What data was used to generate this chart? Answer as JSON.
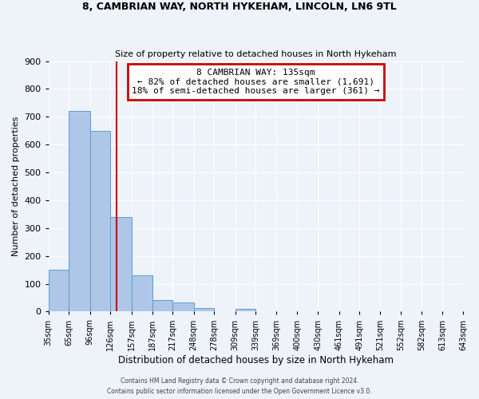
{
  "title1": "8, CAMBRIAN WAY, NORTH HYKEHAM, LINCOLN, LN6 9TL",
  "title2": "Size of property relative to detached houses in North Hykeham",
  "xlabel": "Distribution of detached houses by size in North Hykeham",
  "ylabel": "Number of detached properties",
  "bin_labels": [
    "35sqm",
    "65sqm",
    "96sqm",
    "126sqm",
    "157sqm",
    "187sqm",
    "217sqm",
    "248sqm",
    "278sqm",
    "309sqm",
    "339sqm",
    "369sqm",
    "400sqm",
    "430sqm",
    "461sqm",
    "491sqm",
    "521sqm",
    "552sqm",
    "582sqm",
    "613sqm",
    "643sqm"
  ],
  "bin_edges": [
    35,
    65,
    96,
    126,
    157,
    187,
    217,
    248,
    278,
    309,
    339,
    369,
    400,
    430,
    461,
    491,
    521,
    552,
    582,
    613,
    643
  ],
  "bar_heights": [
    150,
    720,
    650,
    340,
    130,
    42,
    32,
    12,
    0,
    10,
    0,
    0,
    0,
    0,
    0,
    0,
    0,
    0,
    0,
    0
  ],
  "bar_color": "#aec6e8",
  "bar_edge_color": "#5a9fd4",
  "property_line_x": 135,
  "property_line_color": "#cc0000",
  "annotation_text": "8 CAMBRIAN WAY: 135sqm\n← 82% of detached houses are smaller (1,691)\n18% of semi-detached houses are larger (361) →",
  "annotation_box_color": "#ffffff",
  "annotation_box_edge_color": "#cc0000",
  "footnote1": "Contains HM Land Registry data © Crown copyright and database right 2024.",
  "footnote2": "Contains public sector information licensed under the Open Government Licence v3.0.",
  "ylim": [
    0,
    900
  ],
  "background_color": "#eef2f9",
  "grid_color": "#ffffff"
}
